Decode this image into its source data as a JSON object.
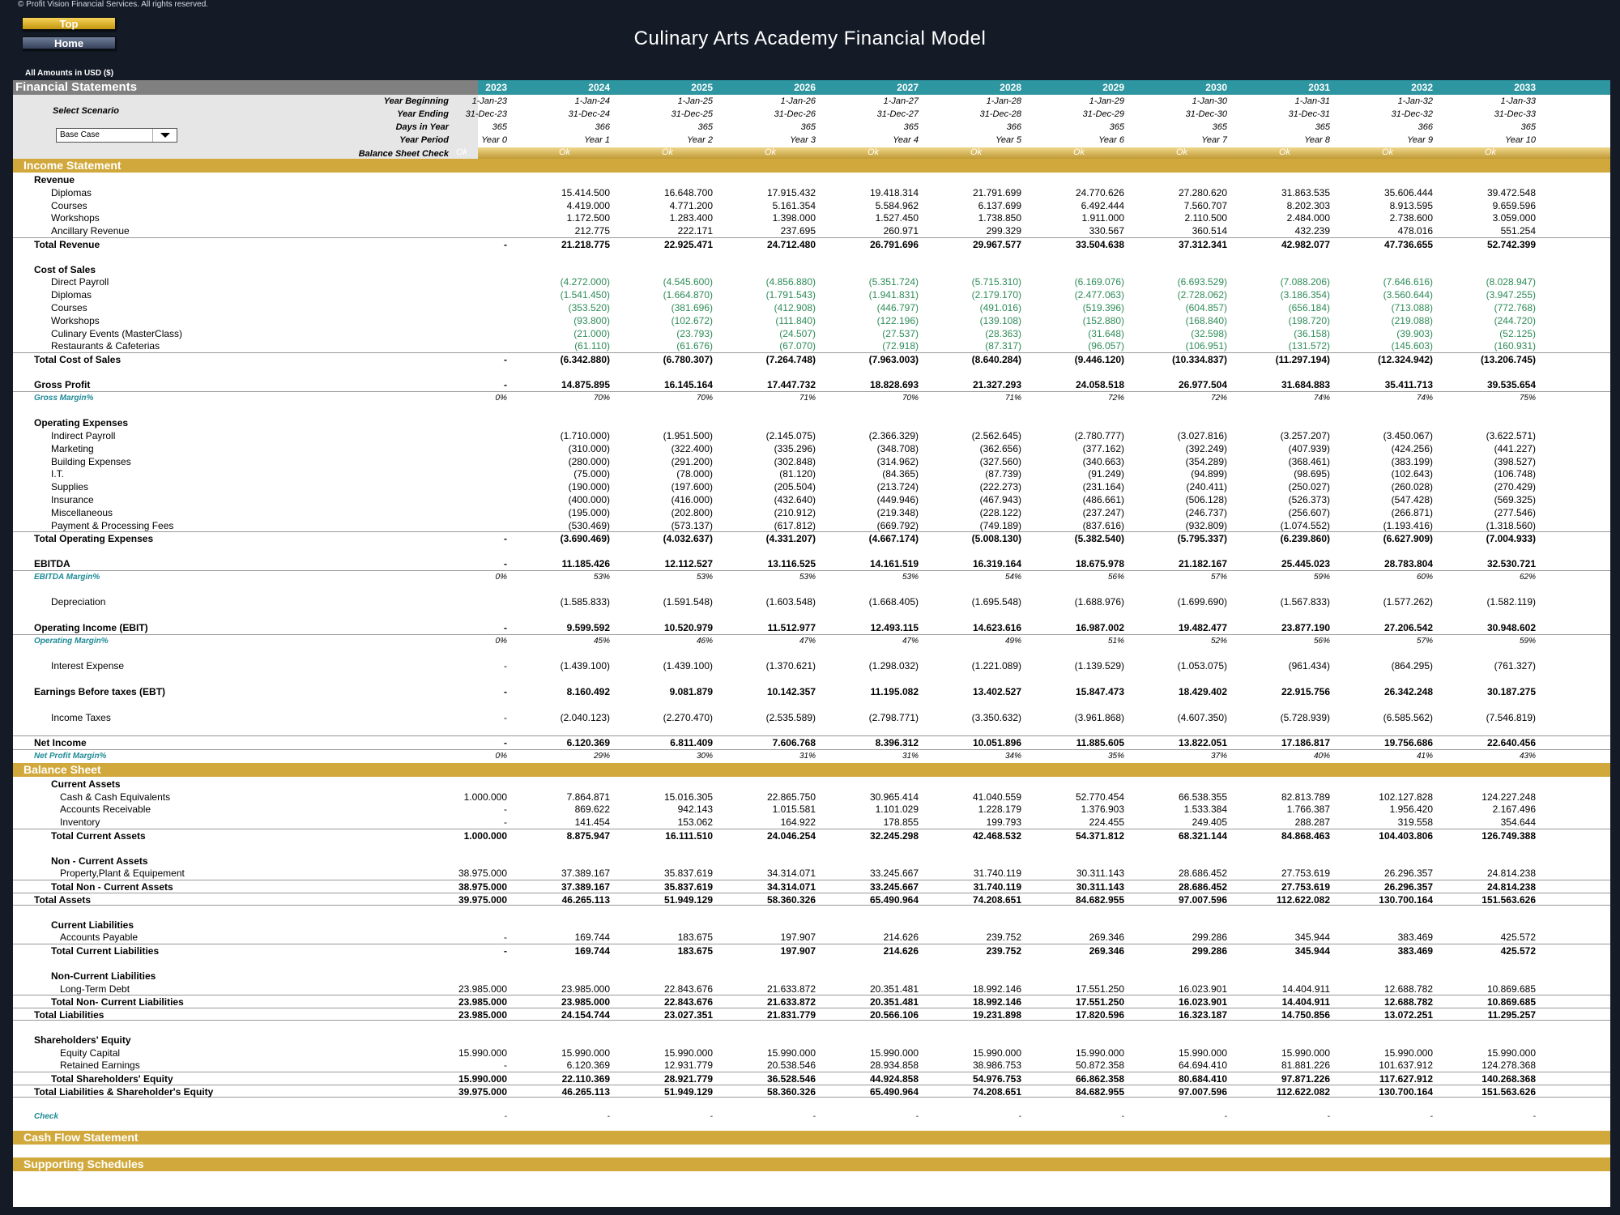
{
  "copyright": "© Profit Vision Financial Services. All rights reserved.",
  "nav": {
    "top": "Top",
    "home": "Home"
  },
  "title": "Culinary Arts Academy Financial Model",
  "amounts": "All Amounts in  USD ($)",
  "fs_title": "Financial Statements",
  "select_scenario": "Select Scenario",
  "scenario_value": "Base Case",
  "years": [
    "2023",
    "2024",
    "2025",
    "2026",
    "2027",
    "2028",
    "2029",
    "2030",
    "2031",
    "2032",
    "2033"
  ],
  "info_rows": [
    {
      "label": "Year Beginning",
      "values": [
        "1-Jan-23",
        "1-Jan-24",
        "1-Jan-25",
        "1-Jan-26",
        "1-Jan-27",
        "1-Jan-28",
        "1-Jan-29",
        "1-Jan-30",
        "1-Jan-31",
        "1-Jan-32",
        "1-Jan-33"
      ]
    },
    {
      "label": "Year Ending",
      "values": [
        "31-Dec-23",
        "31-Dec-24",
        "31-Dec-25",
        "31-Dec-26",
        "31-Dec-27",
        "31-Dec-28",
        "31-Dec-29",
        "31-Dec-30",
        "31-Dec-31",
        "31-Dec-32",
        "31-Dec-33"
      ]
    },
    {
      "label": "Days in Year",
      "values": [
        "365",
        "366",
        "365",
        "365",
        "365",
        "366",
        "365",
        "365",
        "365",
        "366",
        "365"
      ]
    },
    {
      "label": "Year Period",
      "values": [
        "Year 0",
        "Year 1",
        "Year 2",
        "Year 3",
        "Year 4",
        "Year 5",
        "Year 6",
        "Year 7",
        "Year 8",
        "Year 9",
        "Year 10"
      ]
    }
  ],
  "bs_check_label": "Balance Sheet Check",
  "bs_check_values": [
    "Ok",
    "Ok",
    "Ok",
    "Ok",
    "Ok",
    "Ok",
    "Ok",
    "Ok",
    "Ok",
    "Ok",
    "Ok"
  ],
  "sections": {
    "income": "Income Statement",
    "balance": "Balance Sheet",
    "cashflow": "Cash Flow Statement",
    "supporting": "Supporting Schedules"
  },
  "rows": [
    {
      "label": "Revenue",
      "lvl": 1,
      "style": "b",
      "values": []
    },
    {
      "label": "Diplomas",
      "lvl": 2,
      "values": [
        "",
        "15.414.500",
        "16.648.700",
        "17.915.432",
        "19.418.314",
        "21.791.699",
        "24.770.626",
        "27.280.620",
        "31.863.535",
        "35.606.444",
        "39.472.548"
      ]
    },
    {
      "label": "Courses",
      "lvl": 2,
      "values": [
        "",
        "4.419.000",
        "4.771.200",
        "5.161.354",
        "5.584.962",
        "6.137.699",
        "6.492.444",
        "7.560.707",
        "8.202.303",
        "8.913.595",
        "9.659.596"
      ]
    },
    {
      "label": "Workshops",
      "lvl": 2,
      "values": [
        "",
        "1.172.500",
        "1.283.400",
        "1.398.000",
        "1.527.450",
        "1.738.850",
        "1.911.000",
        "2.110.500",
        "2.484.000",
        "2.738.600",
        "3.059.000"
      ]
    },
    {
      "label": "Ancillary Revenue",
      "lvl": 2,
      "values": [
        "",
        "212.775",
        "222.171",
        "237.695",
        "260.971",
        "299.329",
        "330.567",
        "360.514",
        "432.239",
        "478.016",
        "551.254"
      ]
    },
    {
      "label": "Total Revenue",
      "lvl": 1,
      "style": "b bt",
      "values": [
        "-",
        "21.218.775",
        "22.925.471",
        "24.712.480",
        "26.791.696",
        "29.967.577",
        "33.504.638",
        "37.312.341",
        "42.982.077",
        "47.736.655",
        "52.742.399"
      ]
    },
    {
      "gap": true
    },
    {
      "label": "Cost of Sales",
      "lvl": 1,
      "style": "b",
      "values": []
    },
    {
      "label": "Direct Payroll",
      "lvl": 2,
      "style": "neg",
      "values": [
        "",
        "(4.272.000)",
        "(4.545.600)",
        "(4.856.880)",
        "(5.351.724)",
        "(5.715.310)",
        "(6.169.076)",
        "(6.693.529)",
        "(7.088.206)",
        "(7.646.616)",
        "(8.028.947)"
      ]
    },
    {
      "label": "Diplomas",
      "lvl": 2,
      "style": "neg",
      "values": [
        "",
        "(1.541.450)",
        "(1.664.870)",
        "(1.791.543)",
        "(1.941.831)",
        "(2.179.170)",
        "(2.477.063)",
        "(2.728.062)",
        "(3.186.354)",
        "(3.560.644)",
        "(3.947.255)"
      ]
    },
    {
      "label": "Courses",
      "lvl": 2,
      "style": "neg",
      "values": [
        "",
        "(353.520)",
        "(381.696)",
        "(412.908)",
        "(446.797)",
        "(491.016)",
        "(519.396)",
        "(604.857)",
        "(656.184)",
        "(713.088)",
        "(772.768)"
      ]
    },
    {
      "label": "Workshops",
      "lvl": 2,
      "style": "neg",
      "values": [
        "",
        "(93.800)",
        "(102.672)",
        "(111.840)",
        "(122.196)",
        "(139.108)",
        "(152.880)",
        "(168.840)",
        "(198.720)",
        "(219.088)",
        "(244.720)"
      ]
    },
    {
      "label": "Culinary Events (MasterClass)",
      "lvl": 2,
      "style": "neg",
      "values": [
        "",
        "(21.000)",
        "(23.793)",
        "(24.507)",
        "(27.537)",
        "(28.363)",
        "(31.648)",
        "(32.598)",
        "(36.158)",
        "(39.903)",
        "(52.125)"
      ]
    },
    {
      "label": "Restaurants & Cafeterias",
      "lvl": 2,
      "style": "neg",
      "values": [
        "",
        "(61.110)",
        "(61.676)",
        "(67.070)",
        "(72.918)",
        "(87.317)",
        "(96.057)",
        "(106.951)",
        "(131.572)",
        "(145.603)",
        "(160.931)"
      ]
    },
    {
      "label": "Total Cost of Sales",
      "lvl": 1,
      "style": "b bt",
      "values": [
        "-",
        "(6.342.880)",
        "(6.780.307)",
        "(7.264.748)",
        "(7.963.003)",
        "(8.640.284)",
        "(9.446.120)",
        "(10.334.837)",
        "(11.297.194)",
        "(12.324.942)",
        "(13.206.745)"
      ]
    },
    {
      "gap": true
    },
    {
      "label": "Gross Profit",
      "lvl": 1,
      "style": "b",
      "values": [
        "-",
        "14.875.895",
        "16.145.164",
        "17.447.732",
        "18.828.693",
        "21.327.293",
        "24.058.518",
        "26.977.504",
        "31.684.883",
        "35.411.713",
        "39.535.654"
      ]
    },
    {
      "label": "Gross Margin%",
      "lvl": 1,
      "style": "it bt",
      "values": [
        "0%",
        "70%",
        "70%",
        "71%",
        "70%",
        "71%",
        "72%",
        "72%",
        "74%",
        "74%",
        "75%"
      ]
    },
    {
      "gap": true
    },
    {
      "label": "Operating Expenses",
      "lvl": 1,
      "style": "b",
      "values": []
    },
    {
      "label": "Indirect Payroll",
      "lvl": 2,
      "values": [
        "",
        "(1.710.000)",
        "(1.951.500)",
        "(2.145.075)",
        "(2.366.329)",
        "(2.562.645)",
        "(2.780.777)",
        "(3.027.816)",
        "(3.257.207)",
        "(3.450.067)",
        "(3.622.571)"
      ]
    },
    {
      "label": "Marketing",
      "lvl": 2,
      "values": [
        "",
        "(310.000)",
        "(322.400)",
        "(335.296)",
        "(348.708)",
        "(362.656)",
        "(377.162)",
        "(392.249)",
        "(407.939)",
        "(424.256)",
        "(441.227)"
      ]
    },
    {
      "label": "Building Expenses",
      "lvl": 2,
      "values": [
        "",
        "(280.000)",
        "(291.200)",
        "(302.848)",
        "(314.962)",
        "(327.560)",
        "(340.663)",
        "(354.289)",
        "(368.461)",
        "(383.199)",
        "(398.527)"
      ]
    },
    {
      "label": "I.T.",
      "lvl": 2,
      "values": [
        "",
        "(75.000)",
        "(78.000)",
        "(81.120)",
        "(84.365)",
        "(87.739)",
        "(91.249)",
        "(94.899)",
        "(98.695)",
        "(102.643)",
        "(106.748)"
      ]
    },
    {
      "label": "Supplies",
      "lvl": 2,
      "values": [
        "",
        "(190.000)",
        "(197.600)",
        "(205.504)",
        "(213.724)",
        "(222.273)",
        "(231.164)",
        "(240.411)",
        "(250.027)",
        "(260.028)",
        "(270.429)"
      ]
    },
    {
      "label": "Insurance",
      "lvl": 2,
      "values": [
        "",
        "(400.000)",
        "(416.000)",
        "(432.640)",
        "(449.946)",
        "(467.943)",
        "(486.661)",
        "(506.128)",
        "(526.373)",
        "(547.428)",
        "(569.325)"
      ]
    },
    {
      "label": "Miscellaneous",
      "lvl": 2,
      "values": [
        "",
        "(195.000)",
        "(202.800)",
        "(210.912)",
        "(219.348)",
        "(228.122)",
        "(237.247)",
        "(246.737)",
        "(256.607)",
        "(266.871)",
        "(277.546)"
      ]
    },
    {
      "label": "Payment & Processing Fees",
      "lvl": 2,
      "values": [
        "",
        "(530.469)",
        "(573.137)",
        "(617.812)",
        "(669.792)",
        "(749.189)",
        "(837.616)",
        "(932.809)",
        "(1.074.552)",
        "(1.193.416)",
        "(1.318.560)"
      ]
    },
    {
      "label": "Total Operating Expenses",
      "lvl": 1,
      "style": "b bt",
      "values": [
        "-",
        "(3.690.469)",
        "(4.032.637)",
        "(4.331.207)",
        "(4.667.174)",
        "(5.008.130)",
        "(5.382.540)",
        "(5.795.337)",
        "(6.239.860)",
        "(6.627.909)",
        "(7.004.933)"
      ]
    },
    {
      "gap": true
    },
    {
      "label": "EBITDA",
      "lvl": 1,
      "style": "b",
      "values": [
        "-",
        "11.185.426",
        "12.112.527",
        "13.116.525",
        "14.161.519",
        "16.319.164",
        "18.675.978",
        "21.182.167",
        "25.445.023",
        "28.783.804",
        "32.530.721"
      ]
    },
    {
      "label": "EBITDA Margin%",
      "lvl": 1,
      "style": "it bt",
      "values": [
        "0%",
        "53%",
        "53%",
        "53%",
        "53%",
        "54%",
        "56%",
        "57%",
        "59%",
        "60%",
        "62%"
      ]
    },
    {
      "gap": true
    },
    {
      "label": "Depreciation",
      "lvl": 2,
      "values": [
        "",
        "(1.585.833)",
        "(1.591.548)",
        "(1.603.548)",
        "(1.668.405)",
        "(1.695.548)",
        "(1.688.976)",
        "(1.699.690)",
        "(1.567.833)",
        "(1.577.262)",
        "(1.582.119)"
      ]
    },
    {
      "gap": true
    },
    {
      "label": "Operating Income (EBIT)",
      "lvl": 1,
      "style": "b",
      "values": [
        "-",
        "9.599.592",
        "10.520.979",
        "11.512.977",
        "12.493.115",
        "14.623.616",
        "16.987.002",
        "19.482.477",
        "23.877.190",
        "27.206.542",
        "30.948.602"
      ]
    },
    {
      "label": "Operating Margin%",
      "lvl": 1,
      "style": "it bt",
      "values": [
        "0%",
        "45%",
        "46%",
        "47%",
        "47%",
        "49%",
        "51%",
        "52%",
        "56%",
        "57%",
        "59%"
      ]
    },
    {
      "gap": true
    },
    {
      "label": "Interest Expense",
      "lvl": 2,
      "values": [
        "-",
        "(1.439.100)",
        "(1.439.100)",
        "(1.370.621)",
        "(1.298.032)",
        "(1.221.089)",
        "(1.139.529)",
        "(1.053.075)",
        "(961.434)",
        "(864.295)",
        "(761.327)"
      ]
    },
    {
      "gap": true
    },
    {
      "label": "Earnings Before taxes (EBT)",
      "lvl": 1,
      "style": "b",
      "values": [
        "-",
        "8.160.492",
        "9.081.879",
        "10.142.357",
        "11.195.082",
        "13.402.527",
        "15.847.473",
        "18.429.402",
        "22.915.756",
        "26.342.248",
        "30.187.275"
      ]
    },
    {
      "gap": true
    },
    {
      "label": "Income Taxes",
      "lvl": 2,
      "values": [
        "-",
        "(2.040.123)",
        "(2.270.470)",
        "(2.535.589)",
        "(2.798.771)",
        "(3.350.632)",
        "(3.961.868)",
        "(4.607.350)",
        "(5.728.939)",
        "(6.585.562)",
        "(7.546.819)"
      ]
    },
    {
      "gap": true,
      "style": "bb"
    },
    {
      "label": "Net Income",
      "lvl": 1,
      "style": "b",
      "values": [
        "-",
        "6.120.369",
        "6.811.409",
        "7.606.768",
        "8.396.312",
        "10.051.896",
        "11.885.605",
        "13.822.051",
        "17.186.817",
        "19.756.686",
        "22.640.456"
      ]
    },
    {
      "label": "Net Profit Margin%",
      "lvl": 1,
      "style": "it bt",
      "values": [
        "0%",
        "29%",
        "30%",
        "31%",
        "31%",
        "34%",
        "35%",
        "37%",
        "40%",
        "41%",
        "43%"
      ]
    }
  ],
  "bs_rows": [
    {
      "label": "Current Assets",
      "lvl": 2,
      "style": "b",
      "values": []
    },
    {
      "label": "Cash & Cash Equivalents",
      "lvl": 3,
      "values": [
        "1.000.000",
        "7.864.871",
        "15.016.305",
        "22.865.750",
        "30.965.414",
        "41.040.559",
        "52.770.454",
        "66.538.355",
        "82.813.789",
        "102.127.828",
        "124.227.248"
      ]
    },
    {
      "label": "Accounts Receivable",
      "lvl": 3,
      "values": [
        "-",
        "869.622",
        "942.143",
        "1.015.581",
        "1.101.029",
        "1.228.179",
        "1.376.903",
        "1.533.384",
        "1.766.387",
        "1.956.420",
        "2.167.496"
      ]
    },
    {
      "label": "Inventory",
      "lvl": 3,
      "values": [
        "-",
        "141.454",
        "153.062",
        "164.922",
        "178.855",
        "199.793",
        "224.455",
        "249.405",
        "288.287",
        "319.558",
        "354.644"
      ]
    },
    {
      "label": "Total Current Assets",
      "lvl": 2,
      "style": "b bt",
      "values": [
        "1.000.000",
        "8.875.947",
        "16.111.510",
        "24.046.254",
        "32.245.298",
        "42.468.532",
        "54.371.812",
        "68.321.144",
        "84.868.463",
        "104.403.806",
        "126.749.388"
      ]
    },
    {
      "gap": true
    },
    {
      "label": "Non - Current Assets",
      "lvl": 2,
      "style": "b",
      "values": []
    },
    {
      "label": "Property,Plant & Equipement",
      "lvl": 3,
      "values": [
        "38.975.000",
        "37.389.167",
        "35.837.619",
        "34.314.071",
        "33.245.667",
        "31.740.119",
        "30.311.143",
        "28.686.452",
        "27.753.619",
        "26.296.357",
        "24.814.238"
      ]
    },
    {
      "label": "Total Non - Current Assets",
      "lvl": 2,
      "style": "b bt",
      "values": [
        "38.975.000",
        "37.389.167",
        "35.837.619",
        "34.314.071",
        "33.245.667",
        "31.740.119",
        "30.311.143",
        "28.686.452",
        "27.753.619",
        "26.296.357",
        "24.814.238"
      ]
    },
    {
      "label": "Total Assets",
      "lvl": 1,
      "style": "b bt bb",
      "values": [
        "39.975.000",
        "46.265.113",
        "51.949.129",
        "58.360.326",
        "65.490.964",
        "74.208.651",
        "84.682.955",
        "97.007.596",
        "112.622.082",
        "130.700.164",
        "151.563.626"
      ]
    },
    {
      "gap": true
    },
    {
      "label": "Current Liabilities",
      "lvl": 2,
      "style": "b",
      "values": []
    },
    {
      "label": "Accounts Payable",
      "lvl": 3,
      "values": [
        "-",
        "169.744",
        "183.675",
        "197.907",
        "214.626",
        "239.752",
        "269.346",
        "299.286",
        "345.944",
        "383.469",
        "425.572"
      ]
    },
    {
      "label": "Total Current Liabilities",
      "lvl": 2,
      "style": "b bt",
      "values": [
        "-",
        "169.744",
        "183.675",
        "197.907",
        "214.626",
        "239.752",
        "269.346",
        "299.286",
        "345.944",
        "383.469",
        "425.572"
      ]
    },
    {
      "gap": true
    },
    {
      "label": "Non-Current Liabilities",
      "lvl": 2,
      "style": "b",
      "values": []
    },
    {
      "label": "Long-Term Debt",
      "lvl": 3,
      "values": [
        "23.985.000",
        "23.985.000",
        "22.843.676",
        "21.633.872",
        "20.351.481",
        "18.992.146",
        "17.551.250",
        "16.023.901",
        "14.404.911",
        "12.688.782",
        "10.869.685"
      ]
    },
    {
      "label": "Total Non- Current Liabilities",
      "lvl": 2,
      "style": "b bt",
      "values": [
        "23.985.000",
        "23.985.000",
        "22.843.676",
        "21.633.872",
        "20.351.481",
        "18.992.146",
        "17.551.250",
        "16.023.901",
        "14.404.911",
        "12.688.782",
        "10.869.685"
      ]
    },
    {
      "label": "Total Liabilities",
      "lvl": 1,
      "style": "b bt bb",
      "values": [
        "23.985.000",
        "24.154.744",
        "23.027.351",
        "21.831.779",
        "20.566.106",
        "19.231.898",
        "17.820.596",
        "16.323.187",
        "14.750.856",
        "13.072.251",
        "11.295.257"
      ]
    },
    {
      "gap": true
    },
    {
      "label": "Shareholders' Equity",
      "lvl": 1,
      "style": "b",
      "values": []
    },
    {
      "label": "Equity Capital",
      "lvl": 3,
      "values": [
        "15.990.000",
        "15.990.000",
        "15.990.000",
        "15.990.000",
        "15.990.000",
        "15.990.000",
        "15.990.000",
        "15.990.000",
        "15.990.000",
        "15.990.000",
        "15.990.000"
      ]
    },
    {
      "label": "Retained Earnings",
      "lvl": 3,
      "values": [
        "-",
        "6.120.369",
        "12.931.779",
        "20.538.546",
        "28.934.858",
        "38.986.753",
        "50.872.358",
        "64.694.410",
        "81.881.226",
        "101.637.912",
        "124.278.368"
      ]
    },
    {
      "label": "Total Shareholders' Equity",
      "lvl": 2,
      "style": "b bt",
      "values": [
        "15.990.000",
        "22.110.369",
        "28.921.779",
        "36.528.546",
        "44.924.858",
        "54.976.753",
        "66.862.358",
        "80.684.410",
        "97.871.226",
        "117.627.912",
        "140.268.368"
      ]
    },
    {
      "label": "Total Liabilities & Shareholder's Equity",
      "lvl": 1,
      "style": "b bt bb",
      "values": [
        "39.975.000",
        "46.265.113",
        "51.949.129",
        "58.360.326",
        "65.490.964",
        "74.208.651",
        "84.682.955",
        "97.007.596",
        "112.622.082",
        "130.700.164",
        "151.563.626"
      ]
    },
    {
      "gap": true
    },
    {
      "label": "Check",
      "lvl": 1,
      "style": "it",
      "values": [
        "-",
        "-",
        "-",
        "-",
        "-",
        "-",
        "-",
        "-",
        "-",
        "-",
        "-"
      ]
    }
  ]
}
